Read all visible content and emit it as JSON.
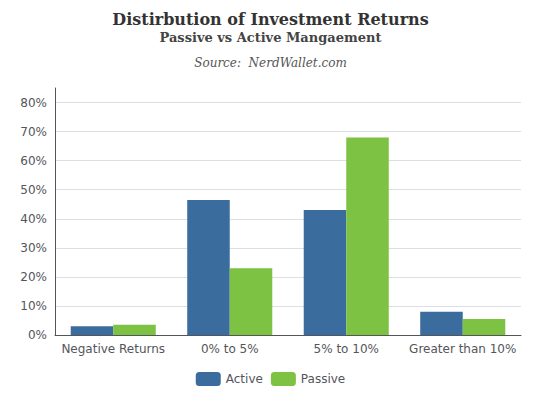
{
  "chart_data": {
    "type": "bar",
    "title": "Distirbution of Investment Returns",
    "subtitle": "Passive vs Active Mangaement",
    "source": "Source:  NerdWallet.com",
    "categories": [
      "Negative Returns",
      "0% to 5%",
      "5% to 10%",
      "Greater than 10%"
    ],
    "series": [
      {
        "name": "Active",
        "color": "#3a6d9e",
        "values": [
          3,
          46.5,
          43,
          8
        ]
      },
      {
        "name": "Passive",
        "color": "#7dc242",
        "values": [
          3.5,
          23,
          68,
          5.5
        ]
      }
    ],
    "ylim": [
      0,
      85
    ],
    "yticks": [
      {
        "value": 0,
        "label": "0%"
      },
      {
        "value": 10,
        "label": "10%"
      },
      {
        "value": 20,
        "label": "20%"
      },
      {
        "value": 30,
        "label": "30%"
      },
      {
        "value": 40,
        "label": "40%"
      },
      {
        "value": 50,
        "label": "50%"
      },
      {
        "value": 60,
        "label": "60%"
      },
      {
        "value": 70,
        "label": "70%"
      },
      {
        "value": 80,
        "label": "80%"
      }
    ],
    "grid": true,
    "legend": "bottom"
  }
}
